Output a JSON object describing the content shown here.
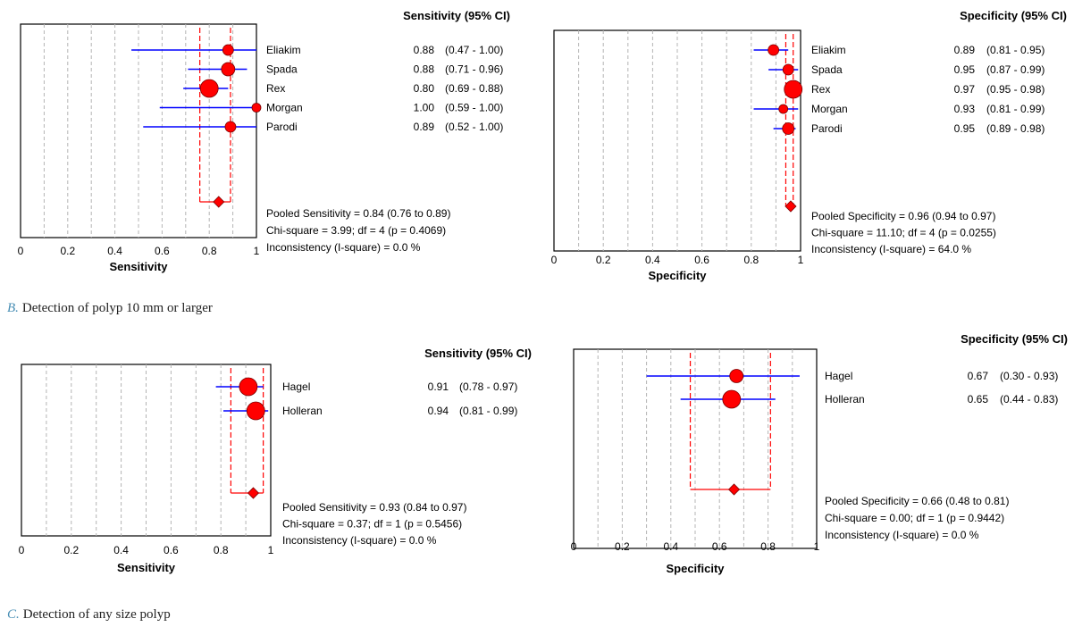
{
  "captions": {
    "b": {
      "letter": "B.",
      "text": "Detection of polyp 10 mm or larger"
    },
    "c": {
      "letter": "C.",
      "text": "Detection of any size polyp"
    }
  },
  "colors": {
    "marker": "#ff0000",
    "ci_line": "#0000ff",
    "pooled_line": "#ff0000",
    "grid": "#b4b4b4"
  },
  "chart_data": [
    {
      "type": "forest",
      "header": "Sensitivity (95% CI)",
      "xlabel": "Sensitivity",
      "xlim": [
        0,
        1
      ],
      "xticks": [
        "0",
        "0.2",
        "0.4",
        "0.6",
        "0.8",
        "1"
      ],
      "studies": [
        {
          "name": "Eliakim",
          "estimate": 0.88,
          "lower": 0.47,
          "upper": 1.0,
          "ci_text": "(0.47 - 1.00)",
          "value_text": "0.88"
        },
        {
          "name": "Spada",
          "estimate": 0.88,
          "lower": 0.71,
          "upper": 0.96,
          "ci_text": "(0.71 - 0.96)",
          "value_text": "0.88"
        },
        {
          "name": "Rex",
          "estimate": 0.8,
          "lower": 0.69,
          "upper": 0.88,
          "ci_text": "(0.69 - 0.88)",
          "value_text": "0.80"
        },
        {
          "name": "Morgan",
          "estimate": 1.0,
          "lower": 0.59,
          "upper": 1.0,
          "ci_text": "(0.59 - 1.00)",
          "value_text": "1.00"
        },
        {
          "name": "Parodi",
          "estimate": 0.89,
          "lower": 0.52,
          "upper": 1.0,
          "ci_text": "(0.52 - 1.00)",
          "value_text": "0.89"
        }
      ],
      "pooled": {
        "estimate": 0.84,
        "lower": 0.76,
        "upper": 0.89
      },
      "stats": [
        "Pooled Sensitivity = 0.84 (0.76 to 0.89)",
        "Chi-square = 3.99; df =  4 (p = 0.4069)",
        "Inconsistency (I-square) = 0.0 %"
      ]
    },
    {
      "type": "forest",
      "header": "Specificity (95% CI)",
      "xlabel": "Specificity",
      "xlim": [
        0,
        1
      ],
      "xticks": [
        "0",
        "0.2",
        "0.4",
        "0.6",
        "0.8",
        "1"
      ],
      "studies": [
        {
          "name": "Eliakim",
          "estimate": 0.89,
          "lower": 0.81,
          "upper": 0.95,
          "ci_text": "(0.81 - 0.95)",
          "value_text": "0.89"
        },
        {
          "name": "Spada",
          "estimate": 0.95,
          "lower": 0.87,
          "upper": 0.99,
          "ci_text": "(0.87 - 0.99)",
          "value_text": "0.95"
        },
        {
          "name": "Rex",
          "estimate": 0.97,
          "lower": 0.95,
          "upper": 0.98,
          "ci_text": "(0.95 - 0.98)",
          "value_text": "0.97"
        },
        {
          "name": "Morgan",
          "estimate": 0.93,
          "lower": 0.81,
          "upper": 0.99,
          "ci_text": "(0.81 - 0.99)",
          "value_text": "0.93"
        },
        {
          "name": "Parodi",
          "estimate": 0.95,
          "lower": 0.89,
          "upper": 0.98,
          "ci_text": "(0.89 - 0.98)",
          "value_text": "0.95"
        }
      ],
      "pooled": {
        "estimate": 0.96,
        "lower": 0.94,
        "upper": 0.97
      },
      "stats": [
        "Pooled Specificity = 0.96 (0.94 to 0.97)",
        "Chi-square = 11.10; df =  4 (p = 0.0255)",
        "Inconsistency (I-square) = 64.0 %"
      ]
    },
    {
      "type": "forest",
      "header": "Sensitivity (95% CI)",
      "xlabel": "Sensitivity",
      "xlim": [
        0,
        1
      ],
      "xticks": [
        "0",
        "0.2",
        "0.4",
        "0.6",
        "0.8",
        "1"
      ],
      "studies": [
        {
          "name": "Hagel",
          "estimate": 0.91,
          "lower": 0.78,
          "upper": 0.97,
          "ci_text": "(0.78 - 0.97)",
          "value_text": "0.91"
        },
        {
          "name": "Holleran",
          "estimate": 0.94,
          "lower": 0.81,
          "upper": 0.99,
          "ci_text": "(0.81 - 0.99)",
          "value_text": "0.94"
        }
      ],
      "pooled": {
        "estimate": 0.93,
        "lower": 0.84,
        "upper": 0.97
      },
      "stats": [
        "Pooled Sensitivity = 0.93 (0.84 to 0.97)",
        "Chi-square = 0.37; df =  1 (p = 0.5456)",
        "Inconsistency (I-square) = 0.0 %"
      ]
    },
    {
      "type": "forest",
      "header": "Specificity (95% CI)",
      "xlabel": "Specificity",
      "xlim": [
        0,
        1
      ],
      "xticks": [
        "0",
        "0.2",
        "0.4",
        "0.6",
        "0.8",
        "1"
      ],
      "studies": [
        {
          "name": "Hagel",
          "estimate": 0.67,
          "lower": 0.3,
          "upper": 0.93,
          "ci_text": "(0.30 - 0.93)",
          "value_text": "0.67"
        },
        {
          "name": "Holleran",
          "estimate": 0.65,
          "lower": 0.44,
          "upper": 0.83,
          "ci_text": "(0.44 - 0.83)",
          "value_text": "0.65"
        }
      ],
      "pooled": {
        "estimate": 0.66,
        "lower": 0.48,
        "upper": 0.81
      },
      "stats": [
        "Pooled Specificity = 0.66 (0.48 to 0.81)",
        "Chi-square = 0.00; df =  1 (p = 0.9442)",
        "Inconsistency (I-square) = 0.0 %"
      ]
    }
  ]
}
